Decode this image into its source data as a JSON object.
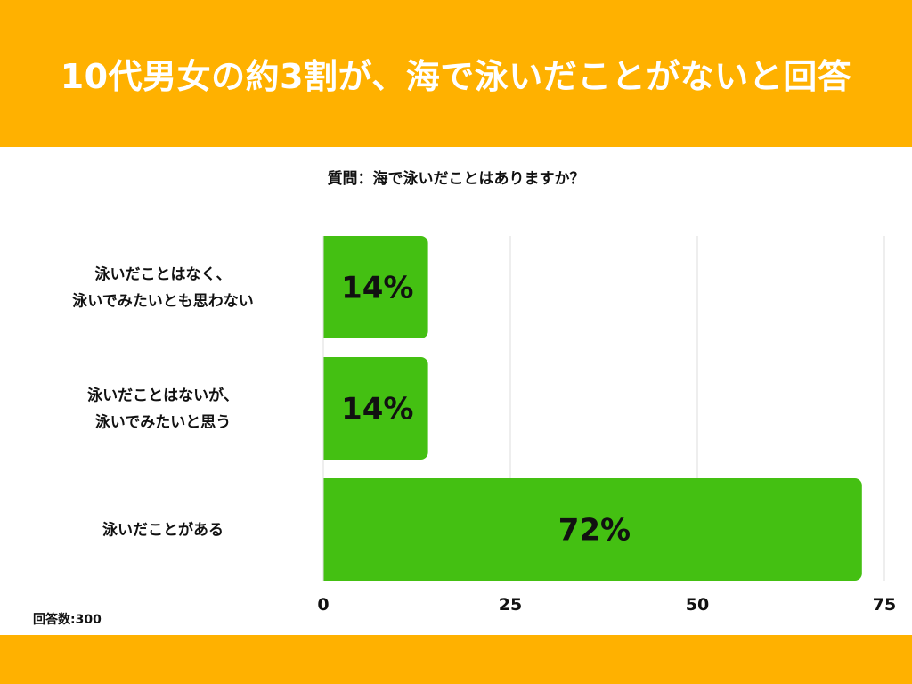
{
  "header": {
    "title": "10代男女の約3割が、海で泳いだことがないと回答"
  },
  "colors": {
    "banner": "#FFB100",
    "bar": "#44C012",
    "grid": "#DDDDDD"
  },
  "chart_data": {
    "type": "bar",
    "orientation": "horizontal",
    "title": "質問：海で泳いだことはありますか？",
    "categories": [
      [
        "泳いだことはなく、",
        "泳いでみたいとも思わない"
      ],
      [
        "泳いだことはないが、",
        "泳いでみたいと思う"
      ],
      [
        "泳いだことがある"
      ]
    ],
    "values": [
      14,
      14,
      72
    ],
    "value_labels": [
      "14%",
      "14%",
      "72%"
    ],
    "xlim": [
      0,
      75
    ],
    "x_ticks": [
      "0",
      "25",
      "50",
      "75"
    ],
    "grid": true,
    "sample_size_label": "回答数:300"
  }
}
